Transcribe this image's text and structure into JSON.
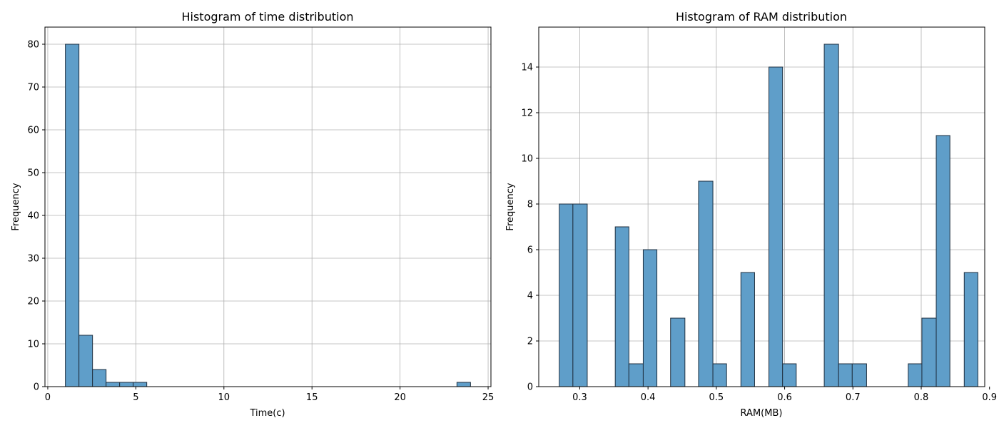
{
  "chart_data": [
    {
      "type": "bar",
      "title": "Histogram of time distribution",
      "xlabel": "Time(c)",
      "ylabel": "Frequency",
      "xlim": [
        -0.16,
        25.16
      ],
      "ylim": [
        0,
        84
      ],
      "xticks": [
        0,
        5,
        10,
        15,
        20,
        25
      ],
      "yticks": [
        0,
        10,
        20,
        30,
        40,
        50,
        60,
        70,
        80
      ],
      "grid": true,
      "bar_color": "#5f9ec9",
      "edge_color": "#1f2f3f",
      "bins": [
        {
          "x0": 1.0,
          "x1": 1.77,
          "count": 80
        },
        {
          "x0": 1.77,
          "x1": 2.54,
          "count": 12
        },
        {
          "x0": 2.54,
          "x1": 3.31,
          "count": 4
        },
        {
          "x0": 3.31,
          "x1": 4.08,
          "count": 1
        },
        {
          "x0": 4.08,
          "x1": 4.85,
          "count": 1
        },
        {
          "x0": 4.85,
          "x1": 5.62,
          "count": 1
        },
        {
          "x0": 23.23,
          "x1": 24.0,
          "count": 1
        }
      ]
    },
    {
      "type": "bar",
      "title": "Histogram of RAM distribution",
      "xlabel": "RAM(MB)",
      "ylabel": "Frequency",
      "xlim": [
        0.24,
        0.893
      ],
      "ylim": [
        0,
        15.75
      ],
      "xticks": [
        0.3,
        0.4,
        0.5,
        0.6,
        0.7,
        0.8,
        0.9
      ],
      "yticks": [
        0,
        2,
        4,
        6,
        8,
        10,
        12,
        14
      ],
      "grid": true,
      "bar_color": "#5f9ec9",
      "edge_color": "#1f2f3f",
      "bins": [
        {
          "x0": 0.27,
          "x1": 0.29,
          "count": 8
        },
        {
          "x0": 0.29,
          "x1": 0.311,
          "count": 8
        },
        {
          "x0": 0.352,
          "x1": 0.372,
          "count": 7
        },
        {
          "x0": 0.372,
          "x1": 0.393,
          "count": 1
        },
        {
          "x0": 0.393,
          "x1": 0.413,
          "count": 6
        },
        {
          "x0": 0.433,
          "x1": 0.454,
          "count": 3
        },
        {
          "x0": 0.474,
          "x1": 0.495,
          "count": 9
        },
        {
          "x0": 0.495,
          "x1": 0.515,
          "count": 1
        },
        {
          "x0": 0.536,
          "x1": 0.556,
          "count": 5
        },
        {
          "x0": 0.577,
          "x1": 0.597,
          "count": 14
        },
        {
          "x0": 0.597,
          "x1": 0.617,
          "count": 1
        },
        {
          "x0": 0.658,
          "x1": 0.679,
          "count": 15
        },
        {
          "x0": 0.679,
          "x1": 0.699,
          "count": 1
        },
        {
          "x0": 0.699,
          "x1": 0.72,
          "count": 1
        },
        {
          "x0": 0.781,
          "x1": 0.801,
          "count": 1
        },
        {
          "x0": 0.801,
          "x1": 0.822,
          "count": 3
        },
        {
          "x0": 0.822,
          "x1": 0.842,
          "count": 11
        },
        {
          "x0": 0.863,
          "x1": 0.883,
          "count": 5
        }
      ]
    }
  ]
}
